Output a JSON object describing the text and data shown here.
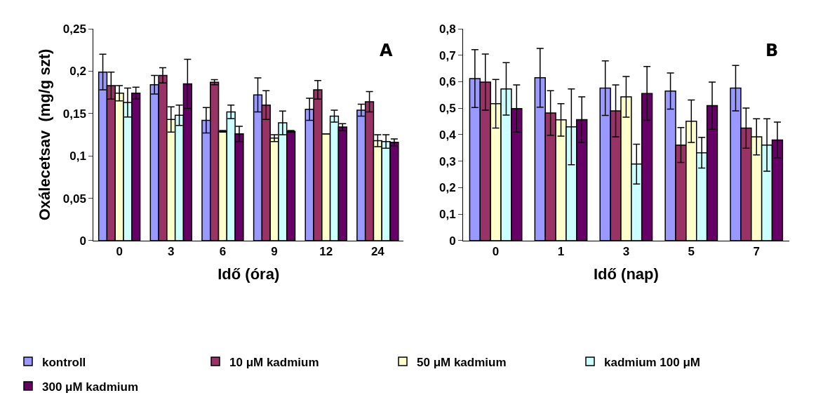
{
  "chart_data": [
    {
      "type": "bar",
      "title": "A",
      "ylabel": "Oxálecetsav  (mg/g szt)",
      "xlabel": "Idő (óra)",
      "categories": [
        "0",
        "3",
        "6",
        "9",
        "12",
        "24"
      ],
      "ylim": [
        0,
        0.25
      ],
      "yticks": [
        0,
        {
          "value": 0.05,
          "label": "0,05"
        },
        {
          "value": 0.1,
          "label": "0,1"
        },
        {
          "value": 0.15,
          "label": "0,15"
        },
        {
          "value": 0.2,
          "label": "0,2"
        },
        {
          "value": 0.25,
          "label": "0,25"
        }
      ],
      "legend": "bottom",
      "series": [
        {
          "name": "kontroll",
          "color": "#9999ff",
          "values": [
            0.199,
            0.184,
            0.142,
            0.172,
            0.155,
            0.154
          ],
          "errors": [
            0.021,
            0.011,
            0.015,
            0.02,
            0.013,
            0.007
          ]
        },
        {
          "name": "10 μM kadmium",
          "color": "#993366",
          "values": [
            0.183,
            0.195,
            0.187,
            0.16,
            0.178,
            0.164
          ],
          "errors": [
            0.016,
            0.009,
            0.003,
            0.017,
            0.011,
            0.012
          ]
        },
        {
          "name": "50 μM kadmium",
          "color": "#ffffcc",
          "values": [
            0.174,
            0.143,
            0.129,
            0.121,
            0.126,
            0.118
          ],
          "errors": [
            0.009,
            0.015,
            0.001,
            0.004,
            null,
            0.007
          ]
        },
        {
          "name": "kadmium 100 μM",
          "color": "#ccffff",
          "values": [
            0.163,
            0.148,
            0.152,
            0.139,
            0.147,
            0.117
          ],
          "errors": [
            0.017,
            0.012,
            0.008,
            0.014,
            0.007,
            0.008
          ]
        },
        {
          "name": "300 μM kadmium",
          "color": "#660066",
          "values": [
            0.174,
            0.185,
            0.126,
            0.129,
            0.134,
            0.116
          ],
          "errors": [
            0.007,
            0.029,
            0.009,
            0.001,
            0.004,
            0.004
          ]
        }
      ]
    },
    {
      "type": "bar",
      "title": "B",
      "xlabel": "Idő (nap)",
      "categories": [
        "0",
        "1",
        "3",
        "5",
        "7"
      ],
      "ylim": [
        0,
        0.8
      ],
      "yticks": [
        0,
        {
          "value": 0.1,
          "label": "0,1"
        },
        {
          "value": 0.2,
          "label": "0,2"
        },
        {
          "value": 0.3,
          "label": "0,3"
        },
        {
          "value": 0.4,
          "label": "0,4"
        },
        {
          "value": 0.5,
          "label": "0,5"
        },
        {
          "value": 0.6,
          "label": "0,6"
        },
        {
          "value": 0.7,
          "label": "0,7"
        },
        {
          "value": 0.8,
          "label": "0,8"
        }
      ],
      "legend": "bottom",
      "series": [
        {
          "name": "kontroll",
          "color": "#9999ff",
          "values": [
            0.612,
            0.615,
            0.576,
            0.565,
            0.576
          ],
          "errors": [
            0.109,
            0.111,
            0.103,
            0.068,
            0.086
          ]
        },
        {
          "name": "10 μM kadmium",
          "color": "#993366",
          "values": [
            0.599,
            0.482,
            0.49,
            0.361,
            0.425
          ],
          "errors": [
            0.106,
            0.084,
            0.098,
            0.066,
            0.076
          ]
        },
        {
          "name": "50 μM kadmium",
          "color": "#ffffcc",
          "values": [
            0.517,
            0.456,
            0.543,
            0.451,
            0.392
          ],
          "errors": [
            0.092,
            0.061,
            0.077,
            0.08,
            0.068
          ]
        },
        {
          "name": "kadmium 100 μM",
          "color": "#ccffff",
          "values": [
            0.573,
            0.43,
            0.289,
            0.332,
            0.361
          ],
          "errors": [
            0.099,
            0.143,
            0.075,
            0.058,
            0.099
          ]
        },
        {
          "name": "300 μM kadmium",
          "color": "#660066",
          "values": [
            0.499,
            0.457,
            0.556,
            0.51,
            0.38
          ],
          "errors": [
            0.089,
            0.086,
            0.102,
            0.089,
            0.068
          ]
        }
      ]
    }
  ]
}
